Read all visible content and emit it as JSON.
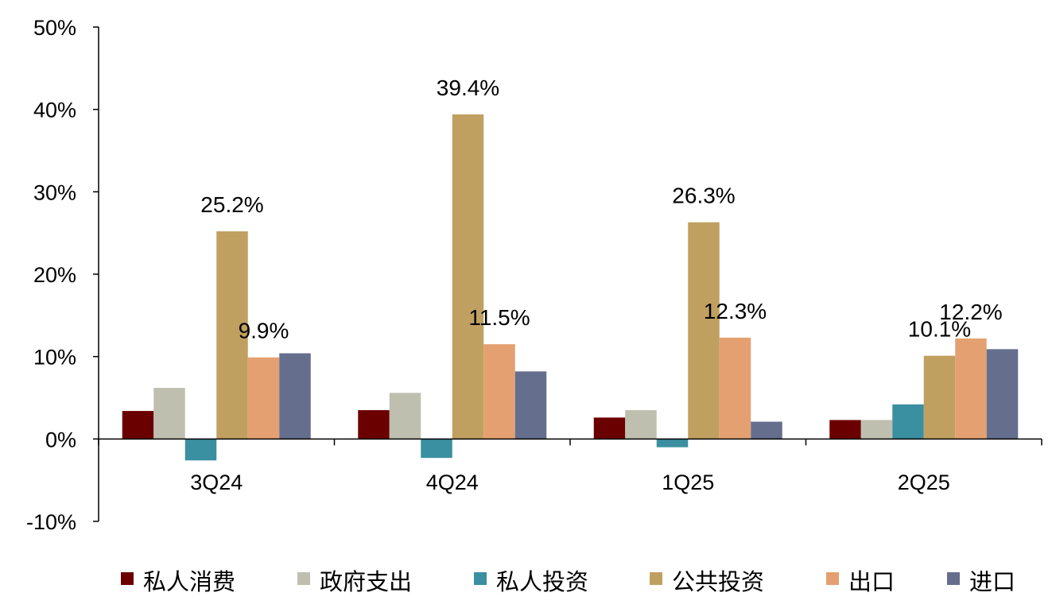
{
  "chart_data": {
    "type": "bar",
    "categories": [
      "3Q24",
      "4Q24",
      "1Q25",
      "2Q25"
    ],
    "series": [
      {
        "name": "私人消费",
        "color": "#6b0000",
        "values": [
          3.4,
          3.5,
          2.6,
          2.3
        ]
      },
      {
        "name": "政府支出",
        "color": "#bfbfb0",
        "values": [
          6.2,
          5.6,
          3.5,
          2.3
        ]
      },
      {
        "name": "私人投资",
        "color": "#3a8fa0",
        "values": [
          -2.6,
          -2.3,
          -1.0,
          4.2
        ]
      },
      {
        "name": "公共投资",
        "color": "#c0a060",
        "values": [
          25.2,
          39.4,
          26.3,
          10.1
        ]
      },
      {
        "name": "出口",
        "color": "#e4a070",
        "values": [
          9.9,
          11.5,
          12.3,
          12.2
        ]
      },
      {
        "name": "进口",
        "color": "#666e8e",
        "values": [
          10.4,
          8.2,
          2.1,
          10.9
        ]
      }
    ],
    "data_labels": [
      {
        "series": "公共投资",
        "category": "3Q24",
        "text": "25.2%"
      },
      {
        "series": "出口",
        "category": "3Q24",
        "text": "9.9%"
      },
      {
        "series": "公共投资",
        "category": "4Q24",
        "text": "39.4%"
      },
      {
        "series": "出口",
        "category": "4Q24",
        "text": "11.5%"
      },
      {
        "series": "公共投资",
        "category": "1Q25",
        "text": "26.3%"
      },
      {
        "series": "出口",
        "category": "1Q25",
        "text": "12.3%"
      },
      {
        "series": "公共投资",
        "category": "2Q25",
        "text": "10.1%"
      },
      {
        "series": "出口",
        "category": "2Q25",
        "text": "12.2%"
      }
    ],
    "ylim": [
      -10,
      50
    ],
    "yticks": [
      50,
      40,
      30,
      20,
      10,
      0,
      -10
    ],
    "ytick_labels": [
      "50%",
      "40%",
      "30%",
      "20%",
      "10%",
      "0%",
      "-10%"
    ],
    "grid": false,
    "legend_position": "bottom"
  }
}
